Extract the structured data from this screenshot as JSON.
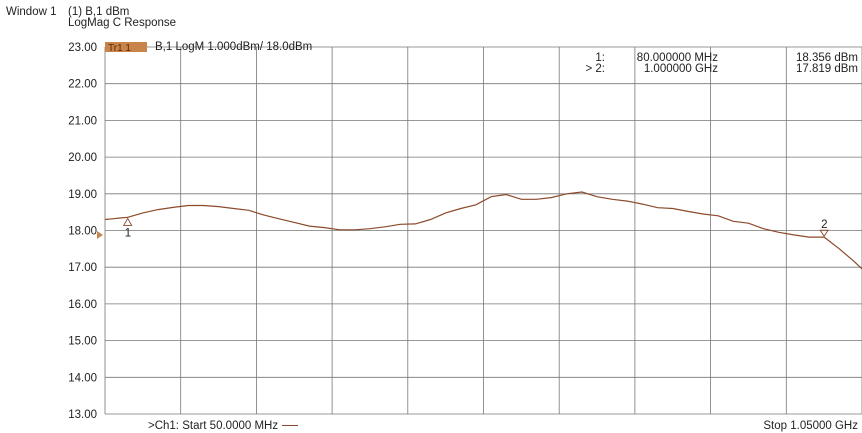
{
  "window": {
    "title": "Window 1",
    "line1": "(1) B,1 dBm",
    "line2": "LogMag C  Response"
  },
  "trace": {
    "badge": "Tr1 1",
    "title": "B,1 LogM 1.000dBm/  18.0dBm",
    "color": "#8b4a2b"
  },
  "markers": [
    {
      "label": "1:",
      "freq": "80.000000 MHz",
      "value": "18.356 dBm",
      "id": "1"
    },
    {
      "label": "> 2:",
      "freq": "1.000000 GHz",
      "value": "17.819 dBm",
      "id": "2"
    }
  ],
  "footer": {
    "start": ">Ch1: Start  50.0000 MHz",
    "stop": "Stop  1.05000 GHz"
  },
  "chart_data": {
    "type": "line",
    "xlabel": "",
    "ylabel": "",
    "xlim_mhz": [
      50,
      1050
    ],
    "ylim": [
      13,
      23
    ],
    "y_ticks": [
      "23.00",
      "22.00",
      "21.00",
      "20.00",
      "19.00",
      "18.00",
      "17.00",
      "16.00",
      "15.00",
      "14.00",
      "13.00"
    ],
    "reference_level": 18.0,
    "grid": true,
    "series": [
      {
        "x_mhz": [
          50,
          60,
          70,
          80,
          100,
          120,
          140,
          160,
          180,
          200,
          220,
          240,
          260,
          280,
          300,
          320,
          340,
          360,
          380,
          400,
          420,
          440,
          460,
          480,
          500,
          520,
          540,
          560,
          580,
          600,
          620,
          640,
          660,
          680,
          700,
          720,
          740,
          760,
          780,
          800,
          820,
          840,
          860,
          880,
          900,
          920,
          940,
          960,
          980,
          1000,
          1020,
          1040,
          1050
        ],
        "y_dbm": [
          18.3,
          18.32,
          18.34,
          18.36,
          18.48,
          18.57,
          18.63,
          18.68,
          18.68,
          18.65,
          18.6,
          18.55,
          18.42,
          18.32,
          18.22,
          18.12,
          18.08,
          18.02,
          18.02,
          18.05,
          18.1,
          18.17,
          18.18,
          18.3,
          18.48,
          18.6,
          18.7,
          18.92,
          18.98,
          18.85,
          18.85,
          18.9,
          19.0,
          19.05,
          18.92,
          18.85,
          18.8,
          18.72,
          18.62,
          18.6,
          18.52,
          18.45,
          18.4,
          18.25,
          18.2,
          18.05,
          17.95,
          17.88,
          17.82,
          17.82,
          17.5,
          17.15,
          16.95
        ]
      }
    ]
  }
}
